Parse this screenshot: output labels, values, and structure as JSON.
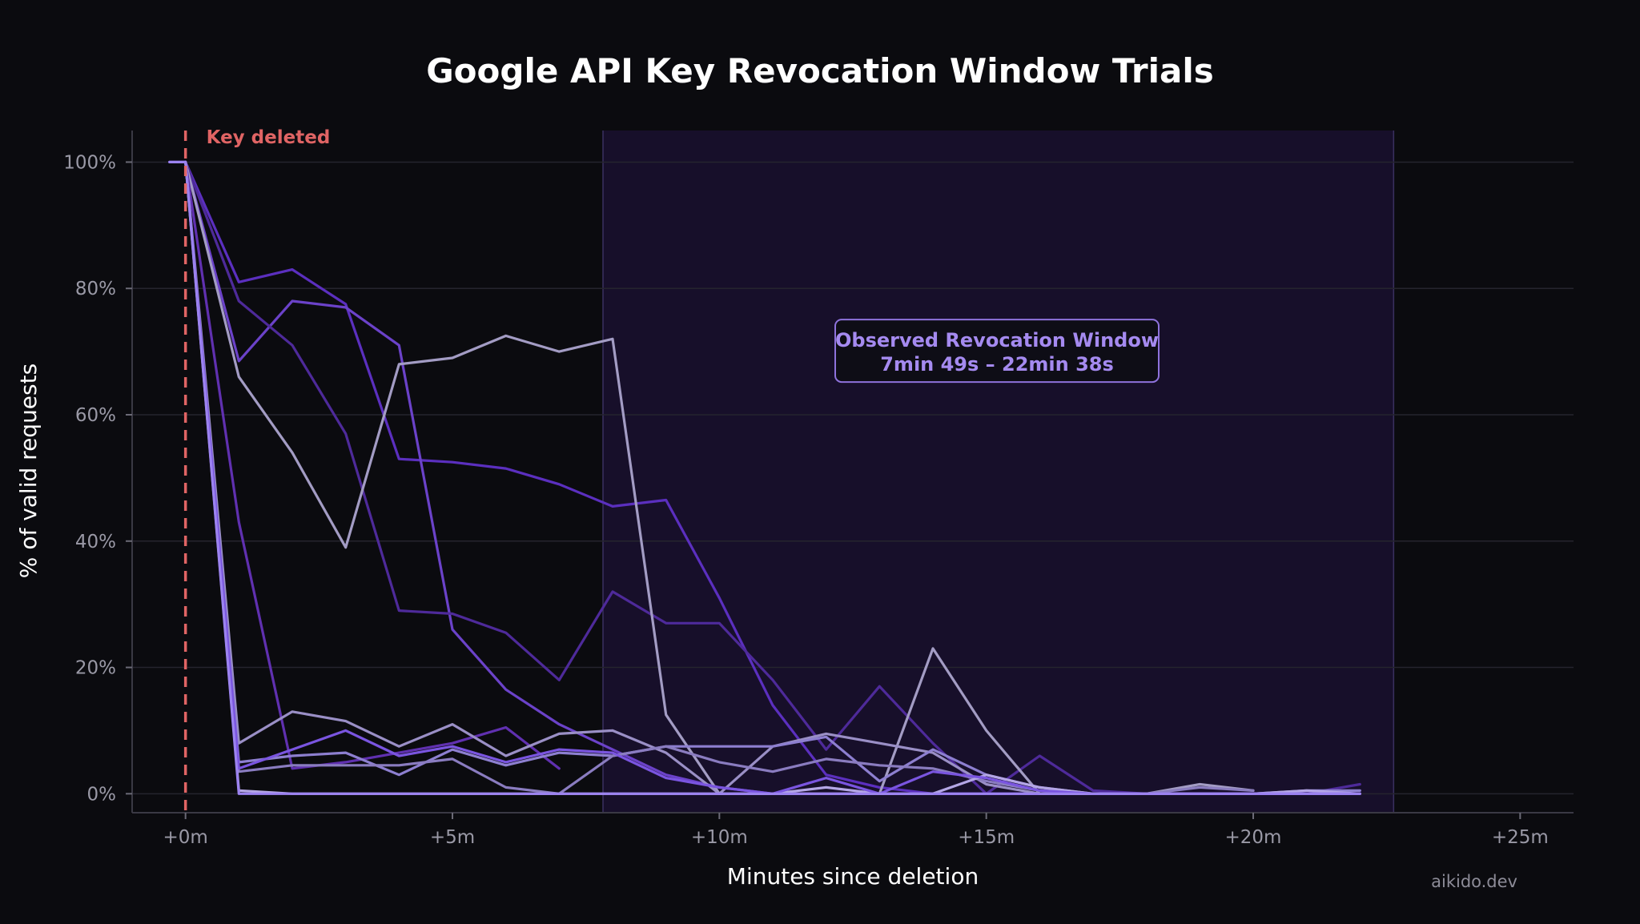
{
  "chart_data": {
    "type": "line",
    "title": "Google API Key Revocation Window Trials",
    "xlabel": "Minutes since deletion",
    "ylabel": "% of valid requests",
    "xlim": [
      -1,
      26
    ],
    "ylim": [
      -3,
      105
    ],
    "x_ticks": [
      0,
      5,
      10,
      15,
      20,
      25
    ],
    "x_tick_labels": [
      "+0m",
      "+5m",
      "+10m",
      "+15m",
      "+20m",
      "+25m"
    ],
    "y_ticks": [
      0,
      20,
      40,
      60,
      80,
      100
    ],
    "y_tick_labels": [
      "0%",
      "20%",
      "40%",
      "60%",
      "80%",
      "100%"
    ],
    "grid": true,
    "marker": {
      "x": 0,
      "label": "Key deleted",
      "color": "#e06464"
    },
    "shaded_region": {
      "x_start": 7.82,
      "x_end": 22.63,
      "label_line1": "Observed Revocation Window",
      "label_line2": "7min 49s – 22min 38s",
      "label_x": 15.2,
      "label_y": 70
    },
    "watermark": "aikido.dev",
    "series": [
      {
        "color": "#5b2fbf",
        "points": [
          [
            -0.3,
            100
          ],
          [
            0,
            100
          ],
          [
            1,
            81
          ],
          [
            2,
            83
          ],
          [
            3,
            77.5
          ],
          [
            4,
            53
          ],
          [
            5,
            52.5
          ],
          [
            6,
            51.5
          ],
          [
            7,
            49
          ],
          [
            8,
            45.5
          ],
          [
            9,
            46.5
          ],
          [
            10,
            31
          ],
          [
            11,
            14
          ],
          [
            12,
            3
          ],
          [
            13,
            1
          ],
          [
            14,
            0
          ],
          [
            15,
            0
          ],
          [
            16,
            0
          ],
          [
            17,
            0
          ],
          [
            18,
            0
          ],
          [
            19,
            0
          ],
          [
            20,
            0
          ],
          [
            21,
            0
          ],
          [
            22,
            0
          ]
        ]
      },
      {
        "color": "#6b42c9",
        "points": [
          [
            0,
            100
          ],
          [
            1,
            68.5
          ],
          [
            2,
            78
          ],
          [
            3,
            77
          ],
          [
            4,
            71
          ],
          [
            5,
            26
          ],
          [
            6,
            16.5
          ],
          [
            7,
            11
          ],
          [
            8,
            7
          ],
          [
            9,
            3
          ],
          [
            10,
            1
          ],
          [
            11,
            0
          ],
          [
            12,
            0
          ],
          [
            13,
            0
          ],
          [
            14,
            0
          ],
          [
            15,
            0
          ],
          [
            16,
            0
          ],
          [
            17,
            0
          ],
          [
            18,
            0
          ],
          [
            19,
            0
          ],
          [
            20,
            0
          ],
          [
            21,
            0
          ],
          [
            22,
            0
          ]
        ]
      },
      {
        "color": "#4e2a9a",
        "points": [
          [
            0,
            100
          ],
          [
            1,
            78
          ],
          [
            2,
            71
          ],
          [
            3,
            57
          ],
          [
            4,
            29
          ],
          [
            5,
            28.5
          ],
          [
            6,
            25.5
          ],
          [
            7,
            18
          ],
          [
            8,
            32
          ],
          [
            9,
            27
          ],
          [
            10,
            27
          ],
          [
            11,
            18
          ],
          [
            12,
            7
          ],
          [
            13,
            17
          ],
          [
            14,
            8
          ],
          [
            15,
            0
          ],
          [
            16,
            6
          ],
          [
            17,
            0.5
          ],
          [
            18,
            0
          ],
          [
            19,
            0
          ],
          [
            20,
            0
          ],
          [
            21,
            0
          ],
          [
            22,
            1.5
          ]
        ]
      },
      {
        "color": "#a39cc4",
        "points": [
          [
            0,
            100
          ],
          [
            1,
            66
          ],
          [
            2,
            54
          ],
          [
            3,
            39
          ],
          [
            4,
            68
          ],
          [
            5,
            69
          ],
          [
            6,
            72.5
          ],
          [
            7,
            70
          ],
          [
            8,
            72
          ],
          [
            9,
            12.5
          ],
          [
            10,
            0
          ],
          [
            11,
            0
          ],
          [
            12,
            0
          ],
          [
            13,
            0
          ],
          [
            14,
            23
          ],
          [
            15,
            10
          ],
          [
            16,
            0
          ],
          [
            17,
            0
          ],
          [
            18,
            0
          ],
          [
            19,
            1.5
          ],
          [
            20,
            0.5
          ]
        ]
      },
      {
        "color": "#6030b0",
        "points": [
          [
            0,
            100
          ],
          [
            1,
            43
          ],
          [
            2,
            4
          ],
          [
            3,
            5
          ],
          [
            4,
            6.5
          ],
          [
            5,
            8
          ],
          [
            6,
            10.5
          ],
          [
            7,
            4
          ]
        ]
      },
      {
        "color": "#9a8fc6",
        "points": [
          [
            0,
            100
          ],
          [
            1,
            8
          ],
          [
            2,
            13
          ],
          [
            3,
            11.5
          ],
          [
            4,
            7.5
          ],
          [
            5,
            11
          ],
          [
            6,
            6
          ],
          [
            7,
            9.5
          ],
          [
            8,
            10
          ],
          [
            9,
            6.5
          ],
          [
            10,
            0
          ],
          [
            11,
            7.5
          ],
          [
            12,
            9.5
          ],
          [
            13,
            8
          ],
          [
            14,
            6.5
          ],
          [
            15,
            1.5
          ],
          [
            16,
            0
          ],
          [
            17,
            0
          ],
          [
            18,
            0
          ],
          [
            19,
            0
          ],
          [
            20,
            0
          ]
        ]
      },
      {
        "color": "#8d7fd0",
        "points": [
          [
            0,
            100
          ],
          [
            1,
            5
          ],
          [
            2,
            6
          ],
          [
            3,
            6.5
          ],
          [
            4,
            3
          ],
          [
            5,
            7
          ],
          [
            6,
            4.5
          ],
          [
            7,
            6.5
          ],
          [
            8,
            6
          ],
          [
            9,
            7.5
          ],
          [
            10,
            7.5
          ],
          [
            11,
            7.5
          ],
          [
            12,
            9
          ],
          [
            13,
            2
          ],
          [
            14,
            7
          ],
          [
            15,
            3
          ],
          [
            16,
            1
          ],
          [
            17,
            0
          ],
          [
            18,
            0
          ],
          [
            19,
            0
          ],
          [
            20,
            0
          ],
          [
            21,
            0.5
          ],
          [
            22,
            0.5
          ]
        ]
      },
      {
        "color": "#8a7cc0",
        "points": [
          [
            0,
            100
          ],
          [
            1,
            3.5
          ],
          [
            2,
            4.5
          ],
          [
            3,
            4.5
          ],
          [
            4,
            4.5
          ],
          [
            5,
            5.5
          ],
          [
            6,
            1
          ],
          [
            7,
            0
          ],
          [
            8,
            6
          ],
          [
            9,
            7.5
          ],
          [
            10,
            5
          ],
          [
            11,
            3.5
          ],
          [
            12,
            5.5
          ],
          [
            13,
            4.5
          ],
          [
            14,
            4
          ],
          [
            15,
            2
          ],
          [
            16,
            0.5
          ],
          [
            17,
            0
          ],
          [
            18,
            0
          ],
          [
            19,
            1
          ],
          [
            20,
            0.5
          ]
        ]
      },
      {
        "color": "#b4a6e6",
        "points": [
          [
            0,
            100
          ],
          [
            1,
            0.5
          ],
          [
            2,
            0
          ],
          [
            3,
            0
          ],
          [
            4,
            0
          ],
          [
            5,
            0
          ],
          [
            6,
            0
          ],
          [
            7,
            0
          ],
          [
            8,
            0
          ],
          [
            9,
            0
          ],
          [
            10,
            0
          ],
          [
            11,
            0
          ],
          [
            12,
            1
          ],
          [
            13,
            0
          ],
          [
            14,
            0
          ],
          [
            15,
            3
          ],
          [
            16,
            1
          ],
          [
            17,
            0
          ],
          [
            18,
            0
          ],
          [
            19,
            0
          ],
          [
            20,
            0
          ],
          [
            21,
            0.5
          ],
          [
            22,
            0
          ]
        ]
      },
      {
        "color": "#7a55e0",
        "points": [
          [
            0,
            100
          ],
          [
            1,
            4
          ],
          [
            2,
            7
          ],
          [
            3,
            10
          ],
          [
            4,
            6
          ],
          [
            5,
            7.5
          ],
          [
            6,
            5
          ],
          [
            7,
            7
          ],
          [
            8,
            6.5
          ],
          [
            9,
            2.5
          ],
          [
            10,
            1
          ],
          [
            11,
            0
          ],
          [
            12,
            2.5
          ],
          [
            13,
            0
          ],
          [
            14,
            3.5
          ],
          [
            15,
            2.5
          ],
          [
            16,
            0.5
          ],
          [
            17,
            0
          ],
          [
            18,
            0
          ],
          [
            19,
            0
          ],
          [
            20,
            0
          ],
          [
            21,
            0
          ],
          [
            22,
            0
          ]
        ]
      },
      {
        "color": "#9c83f0",
        "points": [
          [
            -0.3,
            100
          ],
          [
            0,
            100
          ],
          [
            1,
            0
          ],
          [
            2,
            0
          ],
          [
            3,
            0
          ],
          [
            4,
            0
          ],
          [
            5,
            0
          ],
          [
            6,
            0
          ],
          [
            7,
            0
          ],
          [
            8,
            0
          ],
          [
            9,
            0
          ],
          [
            10,
            0
          ],
          [
            11,
            0
          ],
          [
            12,
            0
          ],
          [
            13,
            0
          ],
          [
            14,
            0
          ],
          [
            15,
            0
          ],
          [
            16,
            0
          ],
          [
            17,
            0
          ],
          [
            18,
            0
          ],
          [
            19,
            0
          ],
          [
            20,
            0
          ],
          [
            21,
            0
          ],
          [
            22,
            0
          ]
        ]
      }
    ]
  }
}
